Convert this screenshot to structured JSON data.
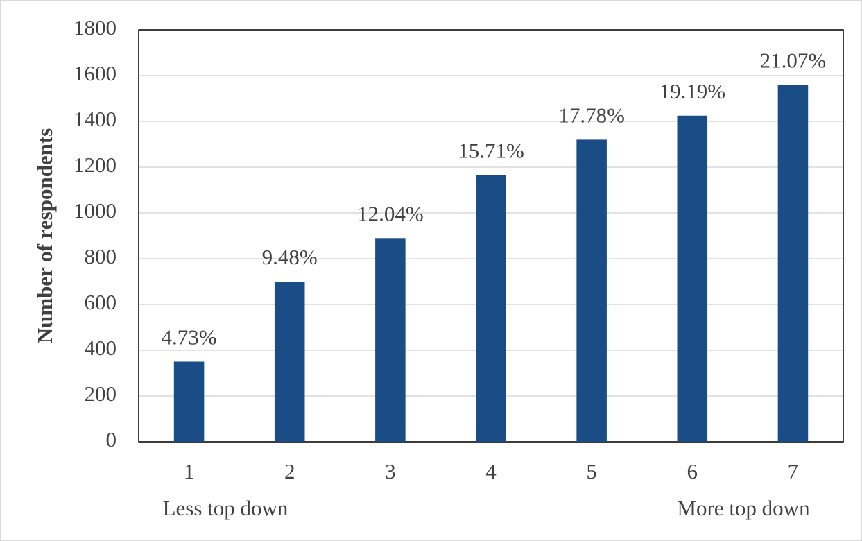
{
  "chart_data": {
    "type": "bar",
    "y_label": "Number of respondents",
    "categories": [
      "1",
      "2",
      "3",
      "4",
      "5",
      "6",
      "7"
    ],
    "values": [
      350,
      700,
      890,
      1165,
      1320,
      1425,
      1560
    ],
    "data_labels": [
      "4.73%",
      "9.48%",
      "12.04%",
      "15.71%",
      "17.78%",
      "19.19%",
      "21.07%"
    ],
    "annotations": [
      "Less top down",
      "More top down"
    ],
    "color": "#1a4d85",
    "ylim": [
      0,
      1800
    ],
    "yticks": [
      0,
      200,
      400,
      600,
      800,
      1000,
      1200,
      1400,
      1600,
      1800
    ],
    "grid": true
  }
}
